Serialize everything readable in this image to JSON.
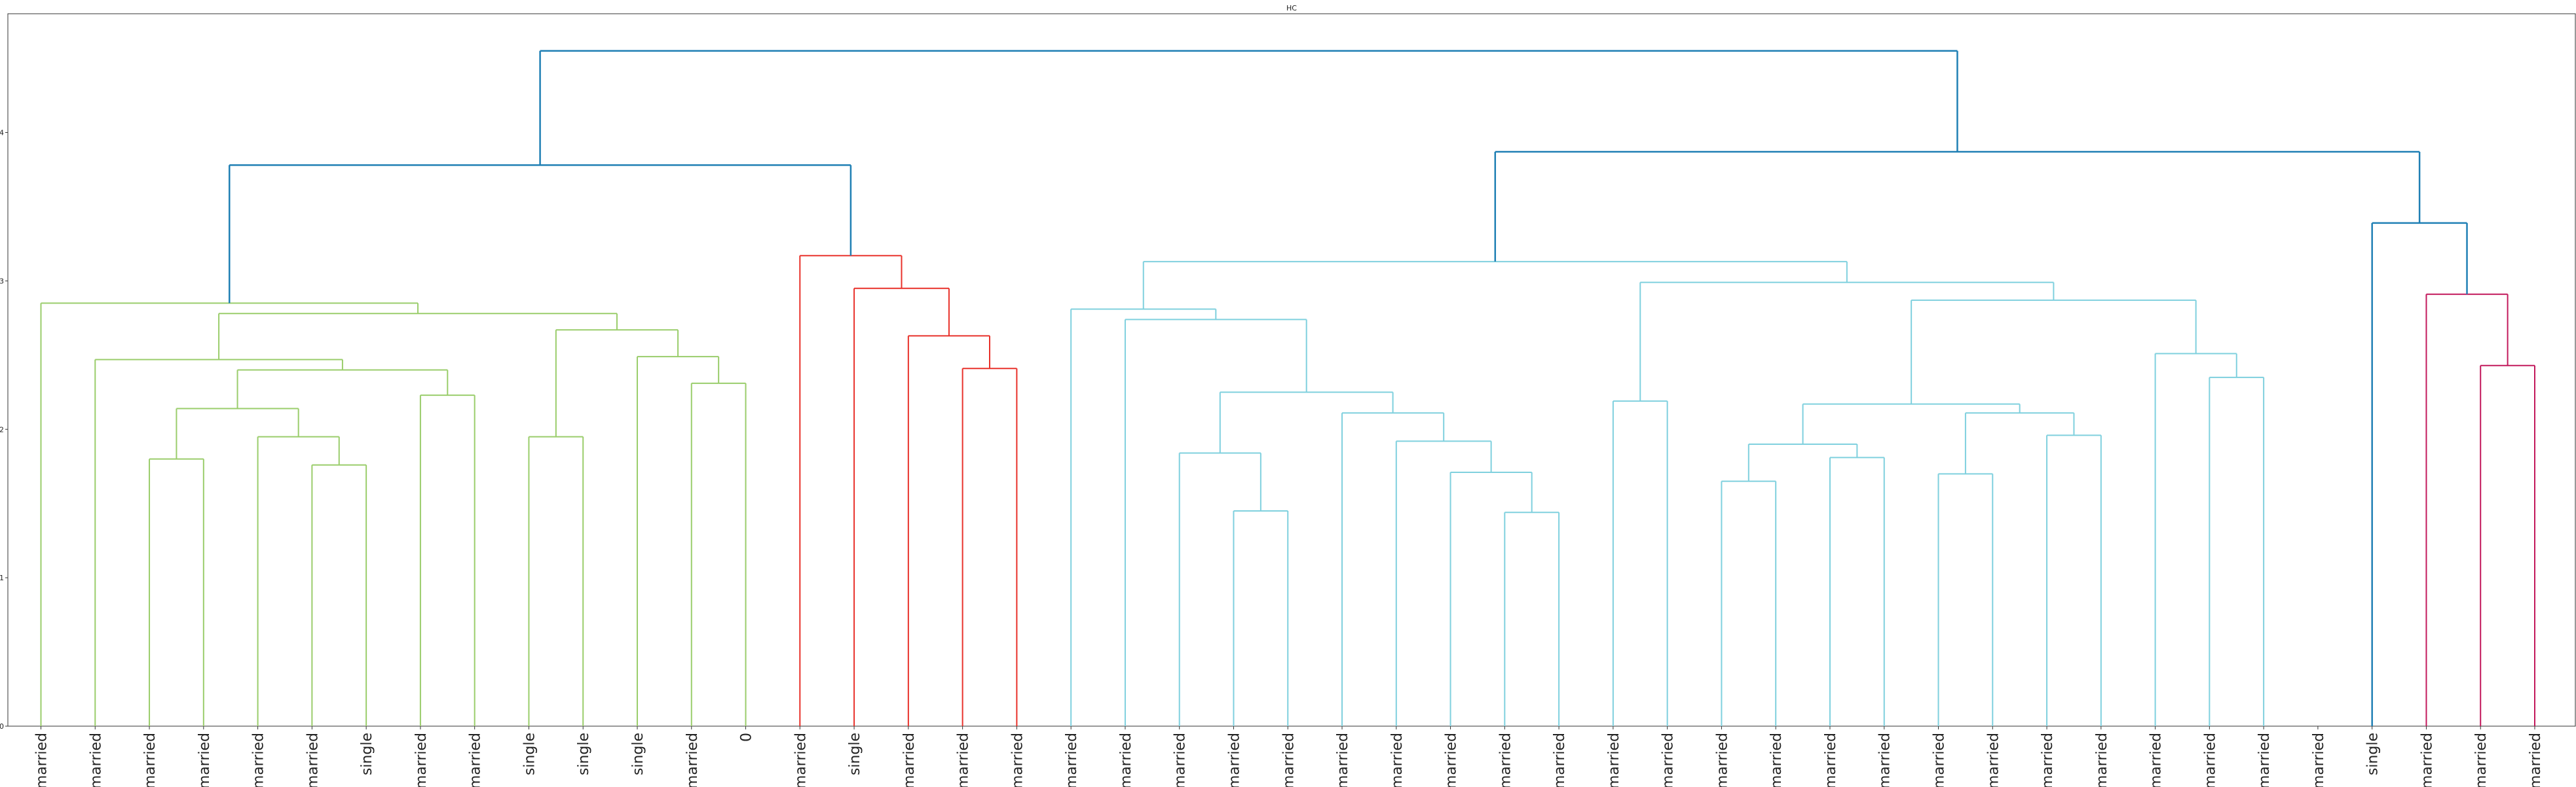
{
  "chart_data": {
    "type": "dendrogram",
    "title": "HC",
    "ylim": [
      0,
      4.8
    ],
    "yticks": [
      0,
      1,
      2,
      3,
      4
    ],
    "leaf_labels": [
      "married",
      "married",
      "married",
      "married",
      "married",
      "married",
      "single",
      "married",
      "married",
      "single",
      "single",
      "single",
      "married",
      "0",
      "married",
      "single",
      "married",
      "married",
      "married",
      "married",
      "married",
      "married",
      "married",
      "married",
      "married",
      "married",
      "married",
      "married",
      "married",
      "married",
      "married",
      "married",
      "married",
      "married",
      "married",
      "married",
      "married",
      "married",
      "married",
      "married",
      "married",
      "married",
      "married",
      "single",
      "married",
      "married",
      "married"
    ],
    "merges": [
      {
        "left": 0,
        "right": 1,
        "height": 2.85,
        "color": "#9ACD6B"
      },
      {
        "left": 0,
        "right": 1,
        "height": 2.49,
        "color": "#9ACD6B"
      },
      {
        "left": 2,
        "right": 3,
        "height": 1.8,
        "color": "#9ACD6B"
      },
      {
        "left": 4,
        "right": 5,
        "height": 1.95,
        "color": "#9ACD6B"
      },
      {
        "left": 5,
        "right": 6,
        "height": 1.76,
        "color": "#9ACD6B"
      },
      {
        "left": 7,
        "right": 8,
        "height": 2.23,
        "color": "#9ACD6B"
      },
      {
        "left": 9,
        "right": 10,
        "height": 1.95,
        "color": "#9ACD6B"
      },
      {
        "left": 11,
        "right": 12,
        "height": 2.49,
        "color": "#9ACD6B"
      },
      {
        "left": 12,
        "right": 13,
        "height": 2.31,
        "color": "#9ACD6B"
      },
      {
        "left": 14,
        "right": 15,
        "height": 3.17,
        "color": "#E8312A"
      },
      {
        "left": 15,
        "right": 16,
        "height": 2.95,
        "color": "#E8312A"
      },
      {
        "left": 16,
        "right": 17,
        "height": 2.63,
        "color": "#E8312A"
      },
      {
        "left": 17,
        "right": 18,
        "height": 2.41,
        "color": "#E8312A"
      },
      {
        "left": 18,
        "right": 19,
        "height": 2.81,
        "color": "#7FD0DE"
      },
      {
        "left": 19,
        "right": 20,
        "height": 2.74,
        "color": "#7FD0DE"
      },
      {
        "left": 20,
        "right": 21,
        "height": 1.84,
        "color": "#7FD0DE"
      },
      {
        "left": 21,
        "right": 22,
        "height": 1.45,
        "color": "#7FD0DE"
      },
      {
        "left": 23,
        "right": 24,
        "height": 2.11,
        "color": "#7FD0DE"
      },
      {
        "left": 24,
        "right": 25,
        "height": 1.92,
        "color": "#7FD0DE"
      },
      {
        "left": 25,
        "right": 26,
        "height": 1.71,
        "color": "#7FD0DE"
      },
      {
        "left": 26,
        "right": 27,
        "height": 1.44,
        "color": "#7FD0DE"
      },
      {
        "left": 28,
        "right": 29,
        "height": 2.19,
        "color": "#7FD0DE"
      },
      {
        "left": 30,
        "right": 31,
        "height": 1.65,
        "color": "#7FD0DE"
      },
      {
        "left": 32,
        "right": 33,
        "height": 1.81,
        "color": "#7FD0DE"
      },
      {
        "left": 34,
        "right": 35,
        "height": 1.7,
        "color": "#7FD0DE"
      },
      {
        "left": 36,
        "right": 37,
        "height": 1.96,
        "color": "#7FD0DE"
      },
      {
        "left": 38,
        "right": 39,
        "height": 2.51,
        "color": "#7FD0DE"
      },
      {
        "left": 39,
        "right": 40,
        "height": 2.35,
        "color": "#7FD0DE"
      },
      {
        "left": 41,
        "right": 42,
        "height": 2.91,
        "color": "#C2185B"
      },
      {
        "left": 42,
        "right": 43,
        "height": 2.43,
        "color": "#C2185B"
      }
    ]
  },
  "colors": {
    "green": "#9ACD6B",
    "red": "#E8312A",
    "cyan": "#7FD0DE",
    "magenta": "#C2185B",
    "blue": "#1F7FB4",
    "axis": "#333333"
  }
}
